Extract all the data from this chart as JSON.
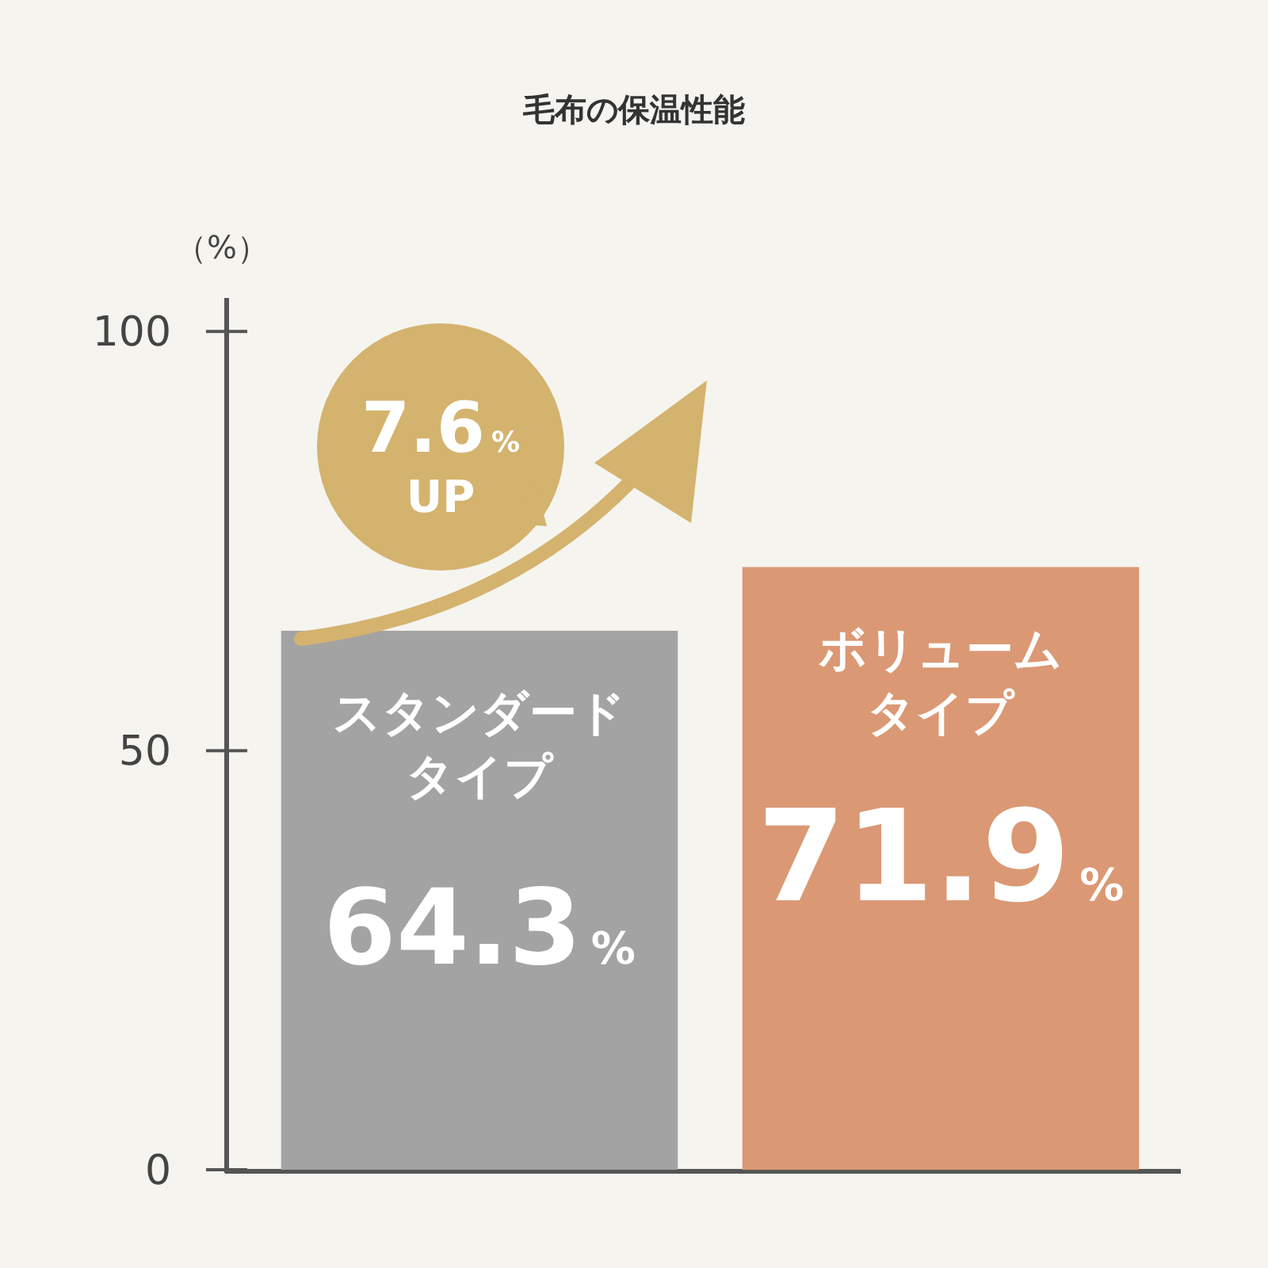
{
  "chart_data": {
    "type": "bar",
    "title": "毛布の保温性能",
    "ylabel": "（%）",
    "categories": [
      "スタンダードタイプ",
      "ボリュームタイプ"
    ],
    "values": [
      64.3,
      71.9
    ],
    "colors": [
      "#a3a3a3",
      "#db9874"
    ],
    "value_labels": [
      "64.3%",
      "71.9%"
    ],
    "ylim": [
      0,
      104
    ],
    "yticks": [
      0,
      50,
      100
    ],
    "annotations": [
      "7.6% UP"
    ]
  }
}
